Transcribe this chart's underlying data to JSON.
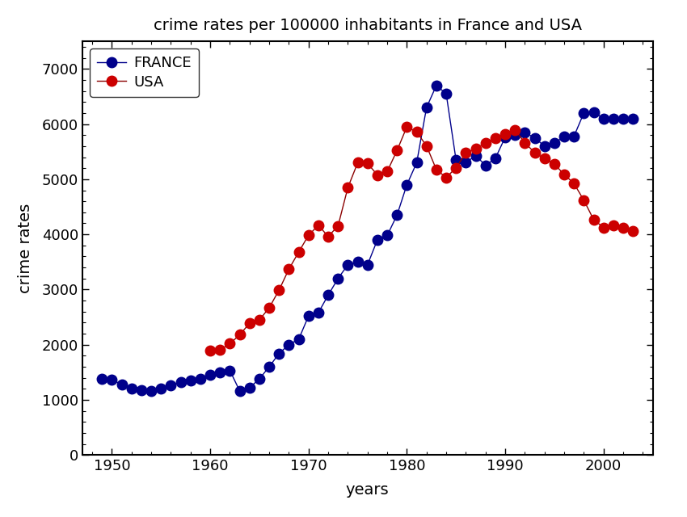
{
  "title": "crime rates per 100000 inhabitants in France and USA",
  "xlabel": "years",
  "ylabel": "crime rates",
  "france_years": [
    1949,
    1950,
    1951,
    1952,
    1953,
    1954,
    1955,
    1956,
    1957,
    1958,
    1959,
    1960,
    1961,
    1962,
    1963,
    1964,
    1965,
    1966,
    1967,
    1968,
    1969,
    1970,
    1971,
    1972,
    1973,
    1974,
    1975,
    1976,
    1977,
    1978,
    1979,
    1980,
    1981,
    1982,
    1983,
    1984,
    1985,
    1986,
    1987,
    1988,
    1989,
    1990,
    1991,
    1992,
    1993,
    1994,
    1995,
    1996,
    1997,
    1998,
    1999,
    2000,
    2001,
    2002,
    2003
  ],
  "france_values": [
    1380,
    1360,
    1280,
    1210,
    1170,
    1160,
    1200,
    1270,
    1320,
    1350,
    1380,
    1450,
    1490,
    1530,
    1160,
    1220,
    1380,
    1600,
    1840,
    2000,
    2100,
    2520,
    2580,
    2900,
    3200,
    3450,
    3500,
    3450,
    3900,
    3980,
    4350,
    4900,
    5300,
    6300,
    6700,
    6550,
    5350,
    5300,
    5430,
    5250,
    5380,
    5760,
    5800,
    5850,
    5750,
    5600,
    5650,
    5780,
    5780,
    6200,
    6220,
    6100,
    6100,
    6100,
    6100
  ],
  "usa_years": [
    1960,
    1961,
    1962,
    1963,
    1964,
    1965,
    1966,
    1967,
    1968,
    1969,
    1970,
    1971,
    1972,
    1973,
    1974,
    1975,
    1976,
    1977,
    1978,
    1979,
    1980,
    1981,
    1982,
    1983,
    1984,
    1985,
    1986,
    1987,
    1988,
    1989,
    1990,
    1991,
    1992,
    1993,
    1994,
    1995,
    1996,
    1997,
    1998,
    1999,
    2000,
    2001,
    2002,
    2003
  ],
  "usa_values": [
    1887,
    1906,
    2019,
    2180,
    2388,
    2449,
    2670,
    2990,
    3370,
    3680,
    3985,
    4165,
    3961,
    4154,
    4850,
    5299,
    5288,
    5077,
    5140,
    5522,
    5950,
    5858,
    5604,
    5175,
    5031,
    5207,
    5480,
    5550,
    5664,
    5741,
    5820,
    5898,
    5660,
    5483,
    5374,
    5275,
    5087,
    4922,
    4620,
    4267,
    4124,
    4163,
    4118,
    4060
  ],
  "france_color": "#00008B",
  "usa_color": "#CC0000",
  "france_line_color": "#00008B",
  "usa_line_color": "#8B0000",
  "ylim": [
    0,
    7500
  ],
  "xlim": [
    1947,
    2005
  ],
  "yticks": [
    0,
    1000,
    2000,
    3000,
    4000,
    5000,
    6000,
    7000
  ],
  "xticks": [
    1950,
    1960,
    1970,
    1980,
    1990,
    2000
  ],
  "marker_size": 9,
  "linewidth": 1.0,
  "title_fontsize": 14,
  "label_fontsize": 14,
  "tick_fontsize": 13
}
